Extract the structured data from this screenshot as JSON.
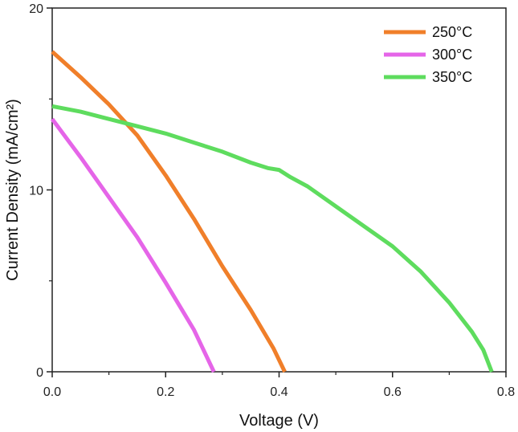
{
  "chart_data": {
    "type": "line",
    "title": "",
    "xlabel": "Voltage (V)",
    "ylabel": "Current Density (mA/cm²)",
    "xlim": [
      0,
      0.8
    ],
    "ylim": [
      0,
      20
    ],
    "x_ticks": [
      0.0,
      0.2,
      0.4,
      0.6,
      0.8
    ],
    "x_tick_labels": [
      "0.0",
      "0.2",
      "0.4",
      "0.6",
      "0.8"
    ],
    "y_ticks": [
      0,
      10,
      20
    ],
    "y_tick_labels": [
      "0",
      "10",
      "20"
    ],
    "grid": false,
    "legend_position": "top-right",
    "series": [
      {
        "name": "250°C",
        "color": "#F07F2A",
        "points": [
          [
            0.0,
            17.6
          ],
          [
            0.05,
            16.2
          ],
          [
            0.1,
            14.7
          ],
          [
            0.15,
            13.0
          ],
          [
            0.2,
            10.8
          ],
          [
            0.25,
            8.4
          ],
          [
            0.3,
            5.8
          ],
          [
            0.35,
            3.4
          ],
          [
            0.39,
            1.3
          ],
          [
            0.41,
            0.0
          ]
        ]
      },
      {
        "name": "300°C",
        "color": "#E565E8",
        "points": [
          [
            0.0,
            13.9
          ],
          [
            0.05,
            11.8
          ],
          [
            0.1,
            9.6
          ],
          [
            0.15,
            7.4
          ],
          [
            0.2,
            4.9
          ],
          [
            0.25,
            2.3
          ],
          [
            0.285,
            0.0
          ]
        ]
      },
      {
        "name": "350°C",
        "color": "#5EDC5E",
        "points": [
          [
            0.0,
            14.6
          ],
          [
            0.05,
            14.3
          ],
          [
            0.1,
            13.9
          ],
          [
            0.15,
            13.5
          ],
          [
            0.2,
            13.1
          ],
          [
            0.25,
            12.6
          ],
          [
            0.3,
            12.1
          ],
          [
            0.35,
            11.5
          ],
          [
            0.38,
            11.2
          ],
          [
            0.4,
            11.1
          ],
          [
            0.42,
            10.7
          ],
          [
            0.45,
            10.2
          ],
          [
            0.5,
            9.1
          ],
          [
            0.55,
            8.0
          ],
          [
            0.6,
            6.9
          ],
          [
            0.65,
            5.5
          ],
          [
            0.7,
            3.8
          ],
          [
            0.74,
            2.2
          ],
          [
            0.76,
            1.2
          ],
          [
            0.775,
            0.0
          ]
        ]
      }
    ]
  }
}
